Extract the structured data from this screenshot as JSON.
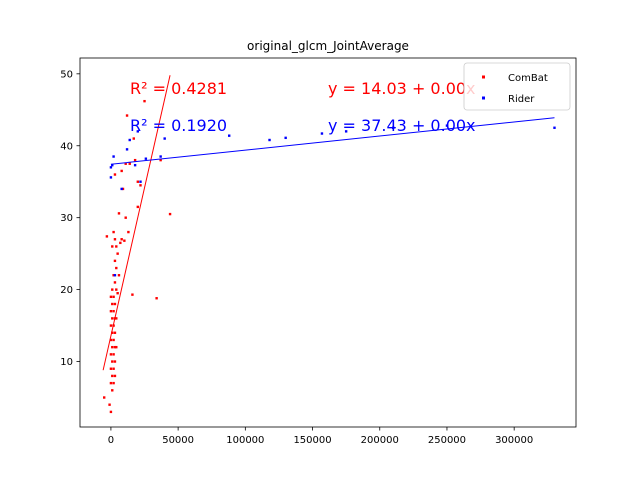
{
  "chart_data": {
    "type": "scatter",
    "title": "original_glcm_JointAverage",
    "xlabel": "",
    "ylabel": "",
    "xlim": [
      -23000,
      346000
    ],
    "ylim": [
      0.9,
      52.2
    ],
    "xticks": [
      0,
      50000,
      100000,
      150000,
      200000,
      250000,
      300000
    ],
    "xtick_labels": [
      "0",
      "50000",
      "100000",
      "150000",
      "200000",
      "250000",
      "300000"
    ],
    "yticks": [
      10,
      20,
      30,
      40,
      50
    ],
    "ytick_labels": [
      "10",
      "20",
      "30",
      "40",
      "50"
    ],
    "grid": false,
    "legend_position": "top-right",
    "series": [
      {
        "name": "ComBat",
        "color": "#ff0000",
        "points": [
          [
            -5000,
            5
          ],
          [
            -3000,
            27.4
          ],
          [
            -1000,
            4
          ],
          [
            0,
            3
          ],
          [
            0,
            7
          ],
          [
            0,
            9
          ],
          [
            0,
            11
          ],
          [
            0,
            13
          ],
          [
            0,
            15
          ],
          [
            0,
            17
          ],
          [
            0,
            19
          ],
          [
            1000,
            6
          ],
          [
            1000,
            8
          ],
          [
            1000,
            10
          ],
          [
            1000,
            12
          ],
          [
            1000,
            14
          ],
          [
            1000,
            16
          ],
          [
            1000,
            18
          ],
          [
            1000,
            20
          ],
          [
            1000,
            26
          ],
          [
            2000,
            7
          ],
          [
            2000,
            9
          ],
          [
            2000,
            11
          ],
          [
            2000,
            13
          ],
          [
            2000,
            15
          ],
          [
            2000,
            17
          ],
          [
            2000,
            19
          ],
          [
            2000,
            22
          ],
          [
            2000,
            28
          ],
          [
            3000,
            8
          ],
          [
            3000,
            10
          ],
          [
            3000,
            12
          ],
          [
            3000,
            14
          ],
          [
            3000,
            16
          ],
          [
            3000,
            18
          ],
          [
            3000,
            21
          ],
          [
            3000,
            24
          ],
          [
            3000,
            27
          ],
          [
            3000,
            36
          ],
          [
            4000,
            12
          ],
          [
            4000,
            16
          ],
          [
            4000,
            20
          ],
          [
            4000,
            23
          ],
          [
            4000,
            26
          ],
          [
            5000,
            19.5
          ],
          [
            5000,
            25
          ],
          [
            6000,
            22
          ],
          [
            6000,
            30.6
          ],
          [
            7000,
            26.5
          ],
          [
            8000,
            27
          ],
          [
            8000,
            36.5
          ],
          [
            9000,
            34
          ],
          [
            10000,
            26.8
          ],
          [
            11000,
            30
          ],
          [
            11000,
            37.5
          ],
          [
            12000,
            44.2
          ],
          [
            13000,
            28
          ],
          [
            14000,
            37.5
          ],
          [
            16000,
            19.3
          ],
          [
            17000,
            41
          ],
          [
            18000,
            38
          ],
          [
            20000,
            31.5
          ],
          [
            20000,
            35
          ],
          [
            22000,
            34.5
          ],
          [
            25000,
            46.2
          ],
          [
            34000,
            18.8
          ],
          [
            37000,
            38
          ],
          [
            44000,
            30.5
          ]
        ],
        "fit": {
          "label": "y = 14.03 + 0.00x",
          "r2_label": "R² = 0.4281",
          "line": [
            [
              -5800,
              8.8
            ],
            [
              44000,
              49.8
            ]
          ]
        }
      },
      {
        "name": "Rider",
        "color": "#0000ff",
        "points": [
          [
            0,
            35.6
          ],
          [
            0,
            37
          ],
          [
            1000,
            37.3
          ],
          [
            2000,
            38.5
          ],
          [
            3000,
            22
          ],
          [
            8000,
            34
          ],
          [
            12000,
            39.5
          ],
          [
            14000,
            40.8
          ],
          [
            18000,
            37.3
          ],
          [
            20000,
            42
          ],
          [
            22000,
            35
          ],
          [
            26000,
            38.2
          ],
          [
            37000,
            38.5
          ],
          [
            40000,
            41
          ],
          [
            88000,
            41.4
          ],
          [
            118000,
            40.8
          ],
          [
            130000,
            41.1
          ],
          [
            157000,
            41.7
          ],
          [
            175000,
            42
          ],
          [
            210000,
            42.5
          ],
          [
            250000,
            42.8
          ],
          [
            330000,
            42.5
          ]
        ],
        "fit": {
          "label": "y = 37.43 + 0.00x",
          "r2_label": "R² = 0.1920",
          "line": [
            [
              0,
              37.43
            ],
            [
              330000,
              43.9
            ]
          ]
        }
      }
    ]
  }
}
